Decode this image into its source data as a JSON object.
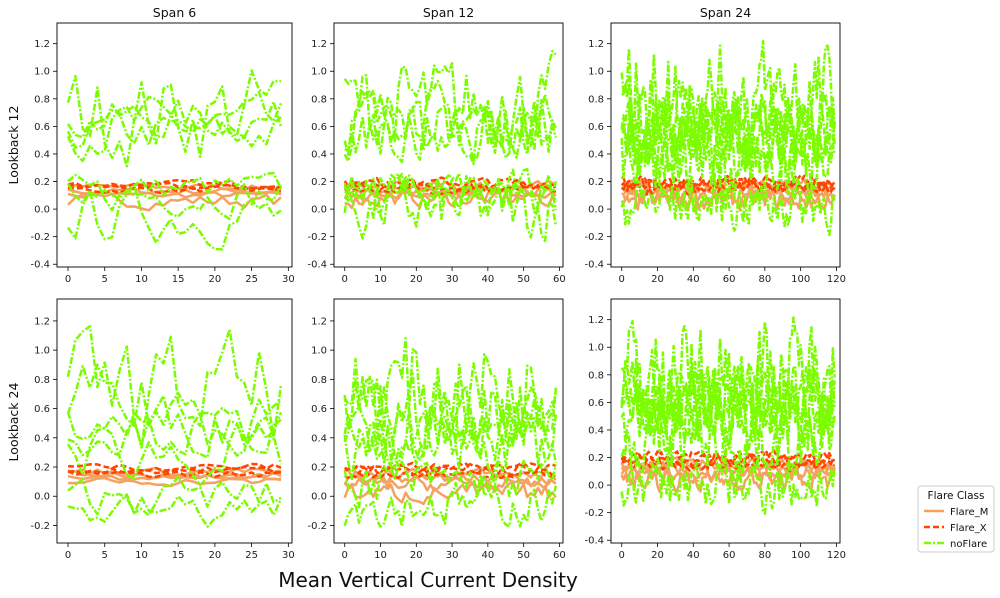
{
  "figure": {
    "xlabel": "Mean Vertical Current Density",
    "row_labels": [
      "Lookback 12",
      "Lookback 24"
    ],
    "col_titles": [
      "Span 6",
      "Span 12",
      "Span 24"
    ]
  },
  "legend": {
    "title": "Flare Class",
    "placement": "outside-right-bottom",
    "entries": [
      {
        "name": "Flare_M",
        "color": "#f4a261",
        "style": "solid"
      },
      {
        "name": "Flare_X",
        "color": "#ff4500",
        "style": "dashed"
      },
      {
        "name": "noFlare",
        "color": "#7cfc00",
        "style": "dashdot"
      }
    ]
  },
  "chart_data": [
    {
      "type": "line",
      "row": 0,
      "col": 0,
      "title": "Span 6",
      "ylabel": "Lookback 12",
      "xlim": [
        -1.5,
        30.5
      ],
      "ylim": [
        -0.42,
        1.35
      ],
      "xticks": [
        0,
        5,
        10,
        15,
        20,
        25,
        30
      ],
      "yticks": [
        -0.4,
        -0.2,
        0.0,
        0.2,
        0.4,
        0.6,
        0.8,
        1.0,
        1.2
      ],
      "n_points": 30,
      "series": [
        {
          "name": "Flare_M",
          "bands": [
            [
              0.1,
              0.02
            ],
            [
              0.13,
              0.02
            ],
            [
              0.16,
              0.02
            ],
            [
              0.06,
              0.04
            ]
          ]
        },
        {
          "name": "Flare_X",
          "bands": [
            [
              0.14,
              0.02
            ],
            [
              0.16,
              0.02
            ],
            [
              0.18,
              0.02
            ]
          ]
        },
        {
          "name": "noFlare",
          "bands": [
            [
              0.65,
              0.12
            ],
            [
              0.6,
              0.15
            ],
            [
              0.55,
              0.12
            ],
            [
              0.7,
              0.28
            ],
            [
              0.15,
              0.08
            ],
            [
              -0.05,
              0.15
            ],
            [
              0.1,
              0.1
            ]
          ]
        }
      ]
    },
    {
      "type": "line",
      "row": 0,
      "col": 1,
      "title": "Span 12",
      "ylabel": "",
      "xlim": [
        -3,
        61
      ],
      "ylim": [
        -0.42,
        1.35
      ],
      "xticks": [
        0,
        10,
        20,
        30,
        40,
        50,
        60
      ],
      "yticks": [
        -0.4,
        -0.2,
        0.0,
        0.2,
        0.4,
        0.6,
        0.8,
        1.0,
        1.2
      ],
      "n_points": 60,
      "series": [
        {
          "name": "Flare_M",
          "bands": [
            [
              0.1,
              0.03
            ],
            [
              0.13,
              0.03
            ],
            [
              0.16,
              0.03
            ],
            [
              0.08,
              0.05
            ]
          ]
        },
        {
          "name": "Flare_X",
          "bands": [
            [
              0.14,
              0.02
            ],
            [
              0.17,
              0.03
            ],
            [
              0.19,
              0.03
            ]
          ]
        },
        {
          "name": "noFlare",
          "bands": [
            [
              0.65,
              0.18
            ],
            [
              0.55,
              0.15
            ],
            [
              0.6,
              0.18
            ],
            [
              0.75,
              0.25
            ],
            [
              0.1,
              0.12
            ],
            [
              0.0,
              0.18
            ],
            [
              0.15,
              0.1
            ]
          ]
        }
      ]
    },
    {
      "type": "line",
      "row": 0,
      "col": 2,
      "title": "Span 24",
      "ylabel": "",
      "xlim": [
        -6,
        122
      ],
      "ylim": [
        -0.42,
        1.35
      ],
      "xticks": [
        0,
        20,
        40,
        60,
        80,
        100,
        120
      ],
      "yticks": [
        -0.4,
        -0.2,
        0.0,
        0.2,
        0.4,
        0.6,
        0.8,
        1.0,
        1.2
      ],
      "n_points": 120,
      "series": [
        {
          "name": "Flare_M",
          "bands": [
            [
              0.1,
              0.04
            ],
            [
              0.14,
              0.03
            ],
            [
              0.17,
              0.03
            ],
            [
              0.06,
              0.06
            ]
          ]
        },
        {
          "name": "Flare_X",
          "bands": [
            [
              0.15,
              0.03
            ],
            [
              0.18,
              0.03
            ],
            [
              0.2,
              0.03
            ]
          ]
        },
        {
          "name": "noFlare",
          "bands": [
            [
              0.6,
              0.2
            ],
            [
              0.5,
              0.18
            ],
            [
              0.65,
              0.22
            ],
            [
              0.8,
              0.3
            ],
            [
              0.35,
              0.18
            ],
            [
              0.05,
              0.15
            ],
            [
              0.45,
              0.2
            ]
          ]
        }
      ]
    },
    {
      "type": "line",
      "row": 1,
      "col": 0,
      "title": "",
      "ylabel": "Lookback 24",
      "xlim": [
        -1.5,
        30.5
      ],
      "ylim": [
        -0.32,
        1.35
      ],
      "xticks": [
        0,
        5,
        10,
        15,
        20,
        25,
        30
      ],
      "yticks": [
        -0.2,
        0.0,
        0.2,
        0.4,
        0.6,
        0.8,
        1.0,
        1.2
      ],
      "n_points": 30,
      "series": [
        {
          "name": "Flare_M",
          "bands": [
            [
              0.1,
              0.02
            ],
            [
              0.13,
              0.02
            ],
            [
              0.15,
              0.02
            ],
            [
              0.17,
              0.02
            ]
          ]
        },
        {
          "name": "Flare_X",
          "bands": [
            [
              0.15,
              0.02
            ],
            [
              0.18,
              0.02
            ],
            [
              0.2,
              0.02
            ]
          ]
        },
        {
          "name": "noFlare",
          "bands": [
            [
              0.5,
              0.15
            ],
            [
              0.45,
              0.12
            ],
            [
              0.7,
              0.3
            ],
            [
              0.6,
              0.22
            ],
            [
              -0.1,
              0.1
            ],
            [
              0.0,
              0.1
            ],
            [
              0.3,
              0.15
            ]
          ]
        }
      ]
    },
    {
      "type": "line",
      "row": 1,
      "col": 1,
      "title": "",
      "ylabel": "",
      "xlim": [
        -3,
        61
      ],
      "ylim": [
        -0.32,
        1.35
      ],
      "xticks": [
        0,
        10,
        20,
        30,
        40,
        50,
        60
      ],
      "yticks": [
        -0.2,
        0.0,
        0.2,
        0.4,
        0.6,
        0.8,
        1.0,
        1.2
      ],
      "n_points": 60,
      "series": [
        {
          "name": "Flare_M",
          "bands": [
            [
              0.08,
              0.04
            ],
            [
              0.12,
              0.03
            ],
            [
              0.15,
              0.03
            ],
            [
              0.02,
              0.05
            ]
          ]
        },
        {
          "name": "Flare_X",
          "bands": [
            [
              0.15,
              0.02
            ],
            [
              0.18,
              0.03
            ],
            [
              0.2,
              0.02
            ]
          ]
        },
        {
          "name": "noFlare",
          "bands": [
            [
              0.5,
              0.18
            ],
            [
              0.4,
              0.15
            ],
            [
              0.6,
              0.22
            ],
            [
              0.75,
              0.3
            ],
            [
              -0.05,
              0.12
            ],
            [
              0.1,
              0.12
            ],
            [
              0.35,
              0.18
            ]
          ]
        }
      ]
    },
    {
      "type": "line",
      "row": 1,
      "col": 2,
      "title": "",
      "ylabel": "",
      "xlim": [
        -6,
        122
      ],
      "ylim": [
        -0.42,
        1.35
      ],
      "xticks": [
        0,
        20,
        40,
        60,
        80,
        100,
        120
      ],
      "yticks": [
        -0.4,
        -0.2,
        0.0,
        0.2,
        0.4,
        0.6,
        0.8,
        1.0,
        1.2
      ],
      "n_points": 120,
      "series": [
        {
          "name": "Flare_M",
          "bands": [
            [
              0.08,
              0.04
            ],
            [
              0.12,
              0.03
            ],
            [
              0.15,
              0.03
            ],
            [
              0.04,
              0.06
            ]
          ]
        },
        {
          "name": "Flare_X",
          "bands": [
            [
              0.15,
              0.03
            ],
            [
              0.18,
              0.03
            ],
            [
              0.21,
              0.03
            ]
          ]
        },
        {
          "name": "noFlare",
          "bands": [
            [
              0.55,
              0.2
            ],
            [
              0.45,
              0.18
            ],
            [
              0.65,
              0.22
            ],
            [
              0.8,
              0.3
            ],
            [
              0.3,
              0.18
            ],
            [
              0.0,
              0.15
            ],
            [
              0.6,
              0.2
            ]
          ]
        }
      ]
    }
  ]
}
